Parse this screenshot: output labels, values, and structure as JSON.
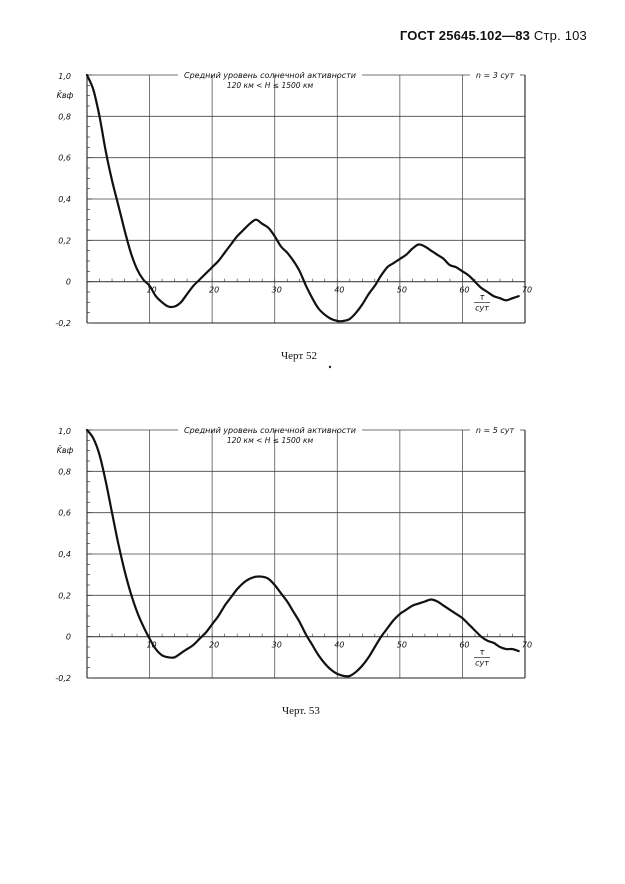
{
  "header": {
    "standard": "ГОСТ 25645.102—83",
    "page": "Стр. 103"
  },
  "chart_data": [
    {
      "type": "line",
      "caption": "Черт 52",
      "title_line1": "Средний уровень солнечной активности",
      "title_line2": "120 км < H ≤ 1500 км",
      "n_label": "n = 3 сут",
      "ylabel": "K̄вф",
      "xlabel_num": "τ",
      "xlabel_den": "сут",
      "xlim": [
        0,
        70
      ],
      "ylim": [
        -0.2,
        1.0
      ],
      "xticks": [
        10,
        20,
        30,
        40,
        50,
        60,
        70
      ],
      "yticks": [
        -0.2,
        0,
        0.2,
        0.4,
        0.6,
        0.8,
        1.0
      ],
      "ytick_labels": [
        "-0,2",
        "0",
        "0,2",
        "0,4",
        "0,6",
        "0,8",
        "1,0"
      ],
      "xtick_labels": [
        "10",
        "20",
        "30",
        "40",
        "50",
        "60",
        "70"
      ],
      "series": [
        {
          "x": [
            0,
            1,
            2,
            3,
            4,
            5,
            6,
            7,
            8,
            9,
            10,
            11,
            12,
            13,
            14,
            15,
            16,
            17,
            18,
            19,
            20,
            21,
            22,
            23,
            24,
            25,
            26,
            27,
            28,
            29,
            30,
            31,
            32,
            33,
            34,
            35,
            36,
            37,
            38,
            39,
            40,
            41,
            42,
            43,
            44,
            45,
            46,
            47,
            48,
            49,
            50,
            51,
            52,
            53,
            54,
            55,
            56,
            57,
            58,
            59,
            60,
            61,
            62,
            63,
            64,
            65,
            66,
            67,
            68,
            69
          ],
          "y": [
            1.0,
            0.93,
            0.8,
            0.63,
            0.49,
            0.37,
            0.25,
            0.14,
            0.06,
            0.01,
            -0.02,
            -0.07,
            -0.1,
            -0.12,
            -0.12,
            -0.1,
            -0.06,
            -0.02,
            0.01,
            0.04,
            0.07,
            0.1,
            0.14,
            0.18,
            0.22,
            0.25,
            0.28,
            0.3,
            0.28,
            0.26,
            0.22,
            0.17,
            0.14,
            0.1,
            0.05,
            -0.02,
            -0.08,
            -0.13,
            -0.16,
            -0.18,
            -0.19,
            -0.19,
            -0.18,
            -0.15,
            -0.11,
            -0.06,
            -0.02,
            0.03,
            0.07,
            0.09,
            0.11,
            0.13,
            0.16,
            0.18,
            0.17,
            0.15,
            0.13,
            0.11,
            0.08,
            0.07,
            0.05,
            0.03,
            0.0,
            -0.03,
            -0.05,
            -0.07,
            -0.08,
            -0.09,
            -0.08,
            -0.07
          ]
        }
      ]
    },
    {
      "type": "line",
      "caption": "Черт. 53",
      "title_line1": "Средний уровень солнечной активности",
      "title_line2": "120 км < H ≤ 1500 км",
      "n_label": "n = 5 сут",
      "ylabel": "K̄вф",
      "xlabel_num": "τ",
      "xlabel_den": "сут",
      "xlim": [
        0,
        70
      ],
      "ylim": [
        -0.2,
        1.0
      ],
      "xticks": [
        10,
        20,
        30,
        40,
        50,
        60,
        70
      ],
      "yticks": [
        -0.2,
        0,
        0.2,
        0.4,
        0.6,
        0.8,
        1.0
      ],
      "ytick_labels": [
        "-0,2",
        "0",
        "0,2",
        "0,4",
        "0,6",
        "0,8",
        "1,0"
      ],
      "xtick_labels": [
        "10",
        "20",
        "30",
        "40",
        "50",
        "60",
        "70"
      ],
      "series": [
        {
          "x": [
            0,
            1,
            2,
            3,
            4,
            5,
            6,
            7,
            8,
            9,
            10,
            11,
            12,
            13,
            14,
            15,
            16,
            17,
            18,
            19,
            20,
            21,
            22,
            23,
            24,
            25,
            26,
            27,
            28,
            29,
            30,
            31,
            32,
            33,
            34,
            35,
            36,
            37,
            38,
            39,
            40,
            41,
            42,
            43,
            44,
            45,
            46,
            47,
            48,
            49,
            50,
            51,
            52,
            53,
            54,
            55,
            56,
            57,
            58,
            59,
            60,
            61,
            62,
            63,
            64,
            65,
            66,
            67,
            68,
            69
          ],
          "y": [
            1.0,
            0.96,
            0.88,
            0.75,
            0.6,
            0.45,
            0.32,
            0.21,
            0.12,
            0.05,
            -0.01,
            -0.06,
            -0.09,
            -0.1,
            -0.1,
            -0.08,
            -0.06,
            -0.04,
            -0.01,
            0.02,
            0.06,
            0.1,
            0.15,
            0.19,
            0.23,
            0.26,
            0.28,
            0.29,
            0.29,
            0.28,
            0.25,
            0.21,
            0.17,
            0.12,
            0.07,
            0.01,
            -0.04,
            -0.09,
            -0.13,
            -0.16,
            -0.18,
            -0.19,
            -0.19,
            -0.17,
            -0.14,
            -0.1,
            -0.05,
            0.0,
            0.04,
            0.08,
            0.11,
            0.13,
            0.15,
            0.16,
            0.17,
            0.18,
            0.17,
            0.15,
            0.13,
            0.11,
            0.09,
            0.06,
            0.03,
            0.0,
            -0.02,
            -0.03,
            -0.05,
            -0.06,
            -0.06,
            -0.07
          ]
        }
      ]
    }
  ]
}
